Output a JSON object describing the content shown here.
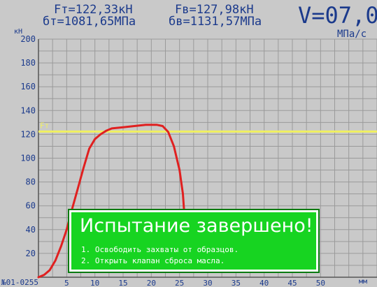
{
  "header": {
    "ft": "Fт=122,33кН",
    "fb": "Fв=127,98кН",
    "st": "бт=1081,65МПа",
    "sb": "бв=1131,57МПа",
    "speed": "V=07,0",
    "speed_unit": "МПа/с"
  },
  "axes": {
    "y_unit": "кН",
    "x_unit": "мм",
    "status": "№01-0255",
    "fy_label": "Fт"
  },
  "chart_data": {
    "type": "line",
    "ylim": [
      0,
      200
    ],
    "xlim": [
      0,
      60
    ],
    "y_ticks": [
      20,
      40,
      60,
      80,
      100,
      120,
      140,
      160,
      180,
      200
    ],
    "x_ticks": [
      5,
      10,
      15,
      20,
      25,
      30,
      35,
      40,
      45,
      50
    ],
    "grid": true,
    "reference_line": {
      "label": "Fт",
      "y": 122.33,
      "color": "#f0f060"
    },
    "series": [
      {
        "color": "#e02020",
        "points": [
          [
            0,
            0
          ],
          [
            1,
            2
          ],
          [
            2,
            6
          ],
          [
            3,
            14
          ],
          [
            4,
            26
          ],
          [
            5,
            40
          ],
          [
            6,
            58
          ],
          [
            7,
            75
          ],
          [
            8,
            92
          ],
          [
            9,
            108
          ],
          [
            10,
            116
          ],
          [
            11,
            120
          ],
          [
            12,
            123
          ],
          [
            13,
            125
          ],
          [
            15,
            126
          ],
          [
            17,
            127
          ],
          [
            19,
            128
          ],
          [
            21,
            128
          ],
          [
            22,
            127
          ],
          [
            23,
            122
          ],
          [
            24,
            110
          ],
          [
            25,
            90
          ],
          [
            25.6,
            70
          ],
          [
            25.9,
            50
          ]
        ]
      }
    ]
  },
  "dialog": {
    "title": "Испытание завершено!",
    "line1": "1. Освободить захваты от образцов.",
    "line2": "2. Открыть клапан сброса масла."
  },
  "colors": {
    "background": "#c9c9c9",
    "grid": "#9a9a9a",
    "text": "#1b3a8c",
    "curve": "#e02020",
    "reference": "#f0f060",
    "dialog": "#17d421"
  }
}
